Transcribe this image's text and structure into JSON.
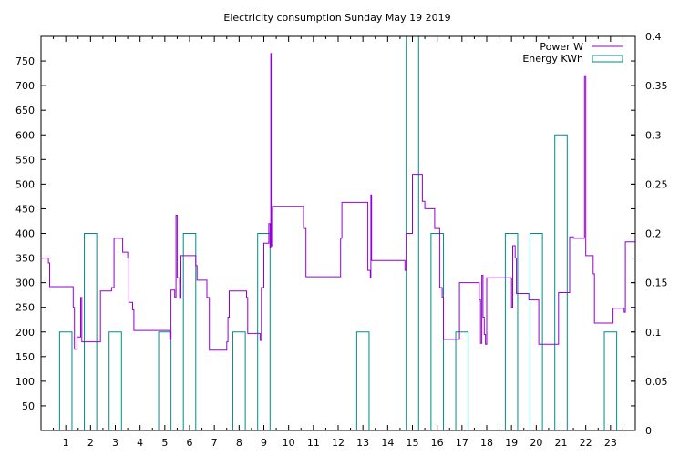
{
  "chart_data": {
    "type": "line",
    "title": "Electricity consumption Sunday May 19 2019",
    "xlabel": "",
    "ylabel": "",
    "y2label": "",
    "xlim": [
      0,
      24
    ],
    "ylim": [
      0,
      800
    ],
    "y2lim": [
      0,
      0.4
    ],
    "x_ticks": [
      1,
      2,
      3,
      4,
      5,
      6,
      7,
      8,
      9,
      10,
      11,
      12,
      13,
      14,
      15,
      16,
      17,
      18,
      19,
      20,
      21,
      22,
      23
    ],
    "y_ticks": [
      50,
      100,
      150,
      200,
      250,
      300,
      350,
      400,
      450,
      500,
      550,
      600,
      650,
      700,
      750
    ],
    "y2_ticks": [
      0,
      0.05,
      0.1,
      0.15,
      0.2,
      0.25,
      0.3,
      0.35,
      0.4
    ],
    "legend_position": "top-right",
    "series": [
      {
        "name": "Power W",
        "axis": "left",
        "color": "#9400d3",
        "points": [
          [
            0.0,
            350
          ],
          [
            0.3,
            350
          ],
          [
            0.3,
            340
          ],
          [
            0.35,
            340
          ],
          [
            0.35,
            292
          ],
          [
            1.3,
            292
          ],
          [
            1.3,
            250
          ],
          [
            1.35,
            250
          ],
          [
            1.35,
            165
          ],
          [
            1.45,
            165
          ],
          [
            1.45,
            190
          ],
          [
            1.6,
            190
          ],
          [
            1.6,
            270
          ],
          [
            1.65,
            270
          ],
          [
            1.65,
            180
          ],
          [
            2.4,
            180
          ],
          [
            2.4,
            283
          ],
          [
            2.85,
            283
          ],
          [
            2.85,
            290
          ],
          [
            2.95,
            290
          ],
          [
            2.95,
            390
          ],
          [
            3.3,
            390
          ],
          [
            3.3,
            362
          ],
          [
            3.5,
            362
          ],
          [
            3.5,
            350
          ],
          [
            3.55,
            350
          ],
          [
            3.55,
            260
          ],
          [
            3.7,
            260
          ],
          [
            3.7,
            245
          ],
          [
            3.75,
            245
          ],
          [
            3.75,
            203
          ],
          [
            5.2,
            203
          ],
          [
            5.2,
            185
          ],
          [
            5.25,
            185
          ],
          [
            5.25,
            285
          ],
          [
            5.4,
            285
          ],
          [
            5.4,
            270
          ],
          [
            5.45,
            270
          ],
          [
            5.45,
            437
          ],
          [
            5.5,
            437
          ],
          [
            5.5,
            310
          ],
          [
            5.6,
            310
          ],
          [
            5.6,
            268
          ],
          [
            5.65,
            268
          ],
          [
            5.65,
            355
          ],
          [
            6.25,
            355
          ],
          [
            6.25,
            335
          ],
          [
            6.3,
            335
          ],
          [
            6.3,
            305
          ],
          [
            6.7,
            305
          ],
          [
            6.7,
            270
          ],
          [
            6.8,
            270
          ],
          [
            6.8,
            163
          ],
          [
            7.5,
            163
          ],
          [
            7.5,
            180
          ],
          [
            7.55,
            180
          ],
          [
            7.55,
            230
          ],
          [
            7.6,
            230
          ],
          [
            7.6,
            283
          ],
          [
            8.3,
            283
          ],
          [
            8.3,
            270
          ],
          [
            8.35,
            270
          ],
          [
            8.35,
            197
          ],
          [
            8.85,
            197
          ],
          [
            8.85,
            183
          ],
          [
            8.9,
            183
          ],
          [
            8.9,
            290
          ],
          [
            9.0,
            290
          ],
          [
            9.0,
            380
          ],
          [
            9.2,
            380
          ],
          [
            9.2,
            420
          ],
          [
            9.25,
            420
          ],
          [
            9.25,
            372
          ],
          [
            9.28,
            372
          ],
          [
            9.28,
            765
          ],
          [
            9.3,
            765
          ],
          [
            9.3,
            375
          ],
          [
            9.35,
            375
          ],
          [
            9.35,
            455
          ],
          [
            10.6,
            455
          ],
          [
            10.6,
            410
          ],
          [
            10.7,
            410
          ],
          [
            10.7,
            312
          ],
          [
            12.1,
            312
          ],
          [
            12.1,
            390
          ],
          [
            12.15,
            390
          ],
          [
            12.15,
            463
          ],
          [
            13.2,
            463
          ],
          [
            13.2,
            325
          ],
          [
            13.3,
            325
          ],
          [
            13.3,
            310
          ],
          [
            13.32,
            310
          ],
          [
            13.32,
            478
          ],
          [
            13.35,
            478
          ],
          [
            13.35,
            345
          ],
          [
            14.7,
            345
          ],
          [
            14.7,
            325
          ],
          [
            14.75,
            325
          ],
          [
            14.75,
            400
          ],
          [
            15.0,
            400
          ],
          [
            15.0,
            520
          ],
          [
            15.4,
            520
          ],
          [
            15.4,
            465
          ],
          [
            15.5,
            465
          ],
          [
            15.5,
            450
          ],
          [
            15.9,
            450
          ],
          [
            15.9,
            410
          ],
          [
            16.1,
            410
          ],
          [
            16.1,
            290
          ],
          [
            16.2,
            290
          ],
          [
            16.2,
            270
          ],
          [
            16.25,
            270
          ],
          [
            16.25,
            185
          ],
          [
            16.9,
            185
          ],
          [
            16.9,
            300
          ],
          [
            17.7,
            300
          ],
          [
            17.7,
            265
          ],
          [
            17.75,
            265
          ],
          [
            17.75,
            177
          ],
          [
            17.8,
            177
          ],
          [
            17.8,
            315
          ],
          [
            17.85,
            315
          ],
          [
            17.85,
            230
          ],
          [
            17.9,
            230
          ],
          [
            17.9,
            195
          ],
          [
            17.95,
            195
          ],
          [
            17.95,
            175
          ],
          [
            18.0,
            175
          ],
          [
            18.0,
            310
          ],
          [
            19.0,
            310
          ],
          [
            19.0,
            250
          ],
          [
            19.05,
            250
          ],
          [
            19.05,
            375
          ],
          [
            19.15,
            375
          ],
          [
            19.15,
            350
          ],
          [
            19.2,
            350
          ],
          [
            19.2,
            278
          ],
          [
            19.7,
            278
          ],
          [
            19.7,
            265
          ],
          [
            20.1,
            265
          ],
          [
            20.1,
            175
          ],
          [
            20.9,
            175
          ],
          [
            20.9,
            280
          ],
          [
            21.35,
            280
          ],
          [
            21.35,
            393
          ],
          [
            21.5,
            393
          ],
          [
            21.5,
            390
          ],
          [
            21.95,
            390
          ],
          [
            21.95,
            720
          ],
          [
            22.0,
            720
          ],
          [
            22.0,
            355
          ],
          [
            22.3,
            355
          ],
          [
            22.3,
            318
          ],
          [
            22.35,
            318
          ],
          [
            22.35,
            218
          ],
          [
            23.1,
            218
          ],
          [
            23.1,
            248
          ],
          [
            23.55,
            248
          ],
          [
            23.55,
            240
          ],
          [
            23.6,
            240
          ],
          [
            23.6,
            383
          ],
          [
            24.0,
            383
          ]
        ]
      },
      {
        "name": "Energy KWh",
        "axis": "right",
        "color": "#008b8b",
        "bars": [
          {
            "x": 1,
            "value": 0.1
          },
          {
            "x": 2,
            "value": 0.2
          },
          {
            "x": 3,
            "value": 0.1
          },
          {
            "x": 5,
            "value": 0.1
          },
          {
            "x": 6,
            "value": 0.2
          },
          {
            "x": 8,
            "value": 0.1
          },
          {
            "x": 9,
            "value": 0.2
          },
          {
            "x": 13,
            "value": 0.1
          },
          {
            "x": 15,
            "value": 0.4
          },
          {
            "x": 16,
            "value": 0.2
          },
          {
            "x": 17,
            "value": 0.1
          },
          {
            "x": 19,
            "value": 0.2
          },
          {
            "x": 20,
            "value": 0.2
          },
          {
            "x": 21,
            "value": 0.3
          },
          {
            "x": 23,
            "value": 0.1
          }
        ]
      }
    ]
  }
}
